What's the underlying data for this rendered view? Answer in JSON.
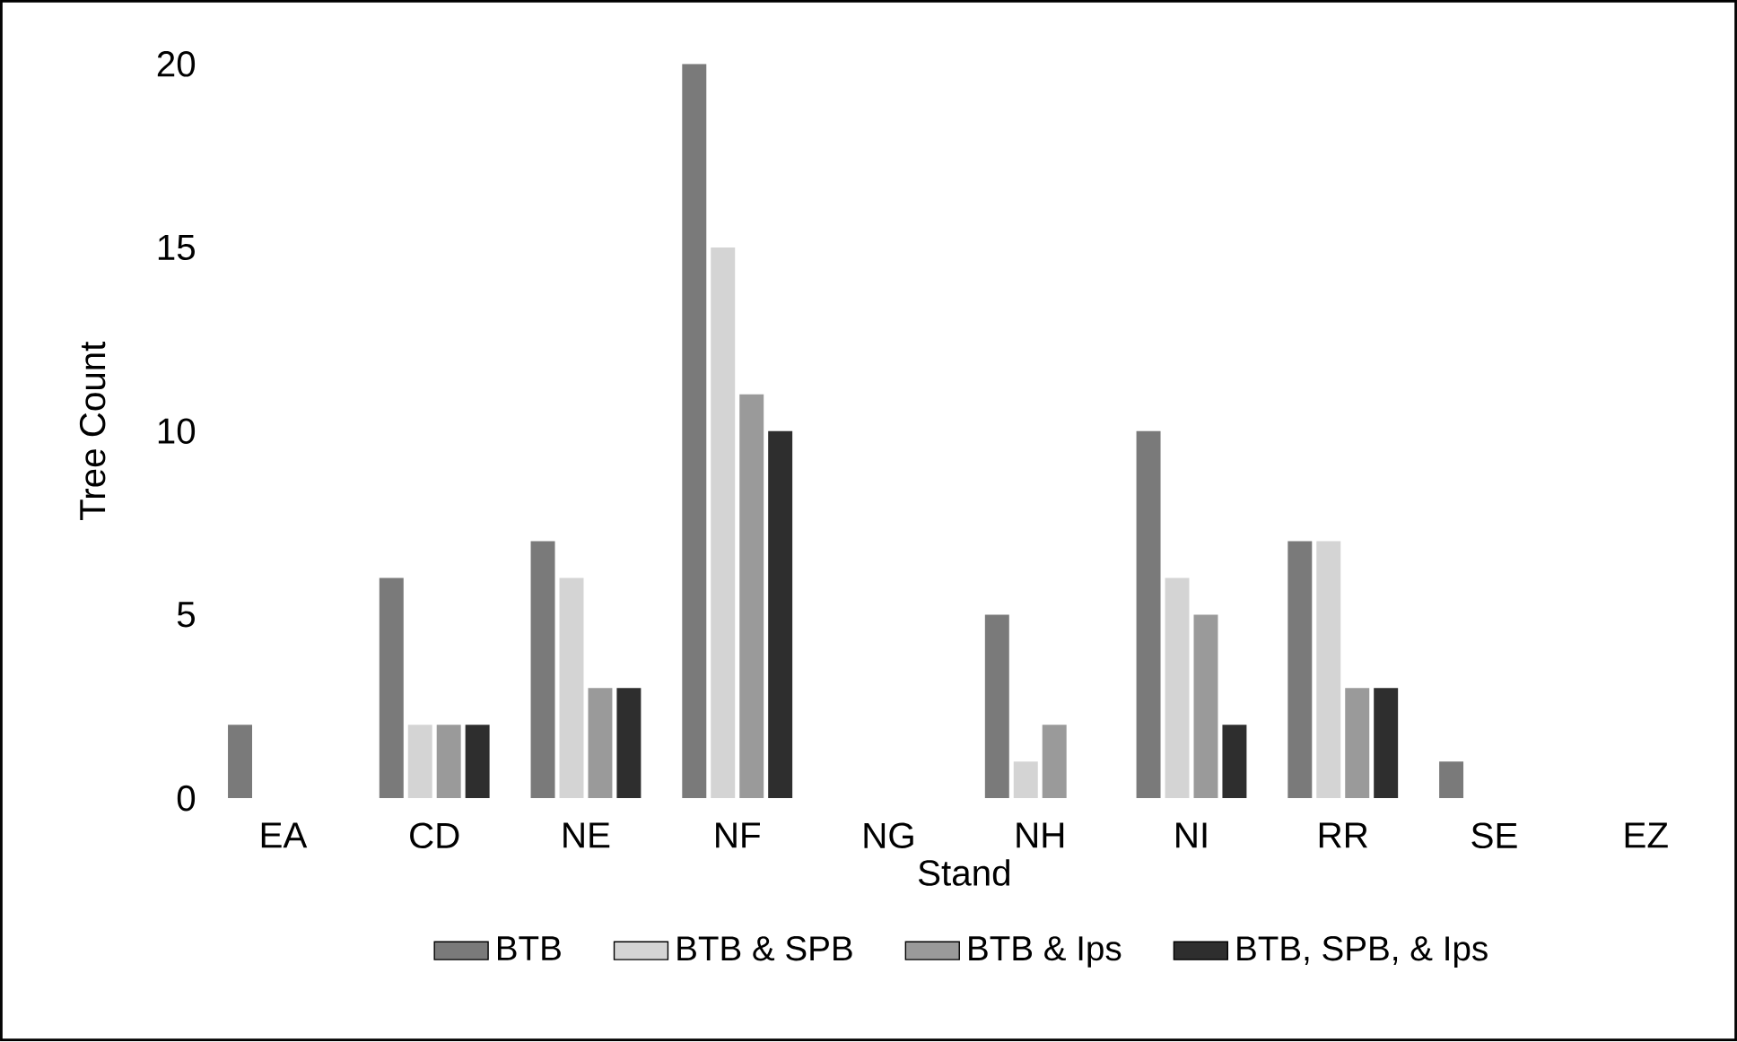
{
  "chart_data": {
    "type": "bar",
    "xlabel": "Stand",
    "ylabel": "Tree Count",
    "categories": [
      "EA",
      "CD",
      "NE",
      "NF",
      "NG",
      "NH",
      "NI",
      "RR",
      "SE",
      "EZ"
    ],
    "series": [
      {
        "name": "BTB",
        "color": "#7a7a7a",
        "values": [
          2,
          6,
          7,
          20,
          0,
          5,
          10,
          7,
          1,
          0
        ]
      },
      {
        "name": "BTB & SPB",
        "color": "#d4d4d4",
        "values": [
          0,
          2,
          6,
          15,
          0,
          1,
          6,
          7,
          0,
          0
        ]
      },
      {
        "name": "BTB & Ips",
        "color": "#9a9a9a",
        "values": [
          0,
          2,
          3,
          11,
          0,
          2,
          5,
          3,
          0,
          0
        ]
      },
      {
        "name": "BTB, SPB, & Ips",
        "color": "#2e2e2e",
        "values": [
          0,
          2,
          3,
          10,
          0,
          0,
          2,
          3,
          0,
          0
        ]
      }
    ],
    "ylim": [
      0,
      20
    ],
    "yticks": [
      0,
      5,
      10,
      15,
      20
    ],
    "grid": false,
    "legend": "bottom"
  }
}
